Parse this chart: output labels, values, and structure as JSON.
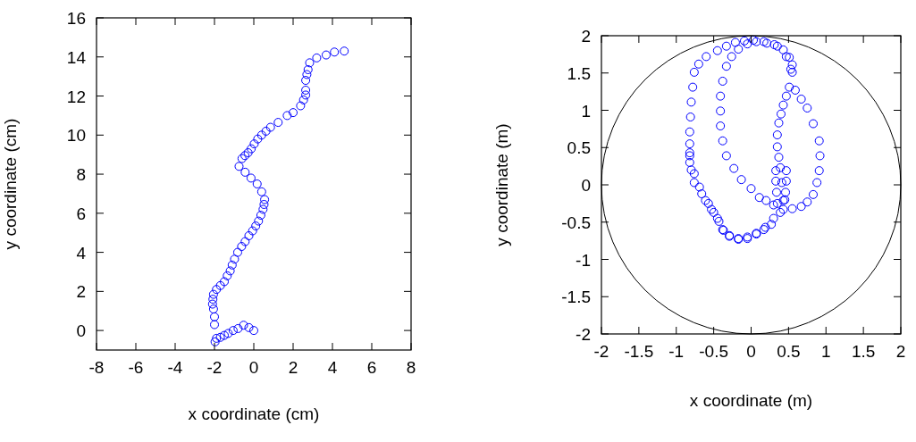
{
  "chart_data": [
    {
      "type": "scatter",
      "xlabel": "x coordinate (cm)",
      "ylabel": "y coordinate (cm)",
      "marker": "circle",
      "color": "#0000ff",
      "xlim": [
        -8,
        8
      ],
      "ylim": [
        -1,
        16
      ],
      "xticks": [
        -8,
        -6,
        -4,
        -2,
        0,
        2,
        4,
        6,
        8
      ],
      "yticks": [
        0,
        2,
        4,
        6,
        8,
        10,
        12,
        14,
        16
      ],
      "x": [
        0,
        -0.25,
        -0.52,
        -0.8,
        -1.05,
        -1.3,
        -1.5,
        -1.7,
        -1.9,
        -1.97,
        -2,
        -2,
        -2.05,
        -2.1,
        -2.08,
        -2.05,
        -1.9,
        -1.7,
        -1.5,
        -1.35,
        -1.2,
        -1.1,
        -0.98,
        -0.82,
        -0.62,
        -0.44,
        -0.25,
        -0.06,
        0.1,
        0.24,
        0.36,
        0.47,
        0.52,
        0.55,
        0.4,
        0.17,
        -0.14,
        -0.44,
        -0.75,
        -0.6,
        -0.45,
        -0.29,
        -0.13,
        0.02,
        0.2,
        0.4,
        0.62,
        0.85,
        1.24,
        1.7,
        2.0,
        2.38,
        2.53,
        2.64,
        2.64,
        2.64,
        2.7,
        2.76,
        2.84,
        3.2,
        3.68,
        4.1,
        4.6
      ],
      "values": [
        0,
        0.15,
        0.27,
        0.1,
        0,
        -0.15,
        -0.25,
        -0.35,
        -0.4,
        -0.58,
        0.3,
        0.7,
        1.1,
        1.35,
        1.6,
        1.85,
        2.1,
        2.3,
        2.5,
        2.8,
        3.05,
        3.35,
        3.65,
        4.0,
        4.3,
        4.55,
        4.85,
        5.1,
        5.35,
        5.6,
        5.9,
        6.2,
        6.45,
        6.7,
        7.1,
        7.5,
        7.8,
        8.1,
        8.4,
        8.8,
        8.95,
        9.1,
        9.3,
        9.55,
        9.8,
        10,
        10.2,
        10.4,
        10.65,
        11,
        11.15,
        11.5,
        11.8,
        12.05,
        12.3,
        12.8,
        13.1,
        13.35,
        13.7,
        13.95,
        14.1,
        14.25,
        14.3
      ]
    },
    {
      "type": "scatter",
      "xlabel": "x coordinate (m)",
      "ylabel": "y coordinate (m)",
      "marker": "circle",
      "color": "#0000ff",
      "xlim": [
        -2,
        2
      ],
      "ylim": [
        -2,
        2
      ],
      "xticks": [
        -2,
        -1.5,
        -1,
        -0.5,
        0,
        0.5,
        1,
        1.5,
        2
      ],
      "yticks": [
        -2,
        -1.5,
        -1,
        -0.5,
        0,
        0.5,
        1,
        1.5,
        2
      ],
      "x": [
        0.33,
        0.33,
        0.34,
        0.35,
        0.3,
        0.19,
        0.07,
        -0.05,
        -0.17,
        -0.29,
        -0.38,
        -0.43,
        -0.5,
        -0.57,
        -0.66,
        -0.76,
        -0.8,
        -0.82,
        -0.82,
        -0.82,
        -0.81,
        -0.8,
        -0.78,
        -0.76,
        -0.7,
        -0.6,
        -0.45,
        -0.33,
        -0.21,
        -0.09,
        0.03,
        0.17,
        0.31,
        0.43,
        0.51,
        0.55,
        0.55,
        0.51,
        0.47,
        0.43,
        0.4,
        0.37,
        0.35,
        0.35,
        0.37,
        0.39,
        0.41,
        0.43,
        0.39,
        0.27,
        0.17,
        0.07,
        -0.05,
        -0.17,
        -0.29,
        -0.37,
        -0.45,
        -0.53,
        -0.61,
        -0.69,
        -0.76,
        -0.82,
        -0.82,
        0.3,
        0.2,
        0.11,
        0.0,
        -0.13,
        -0.23,
        -0.33,
        -0.38,
        -0.41,
        -0.41,
        -0.41,
        -0.38,
        -0.33,
        -0.26,
        -0.17,
        -0.05,
        0.07,
        0.21,
        0.35,
        0.47,
        0.53,
        0.59,
        0.67,
        0.75,
        0.83,
        0.91,
        0.92,
        0.91,
        0.88,
        0.83,
        0.75,
        0.67,
        0.55,
        0.43,
        0.47,
        0.47,
        0.46,
        0.45
      ],
      "values": [
        0.19,
        0.05,
        -0.1,
        -0.25,
        -0.45,
        -0.57,
        -0.66,
        -0.72,
        -0.72,
        -0.69,
        -0.6,
        -0.49,
        -0.37,
        -0.25,
        -0.12,
        0.03,
        0.2,
        0.39,
        0.55,
        0.71,
        0.91,
        1.11,
        1.31,
        1.51,
        1.62,
        1.72,
        1.8,
        1.86,
        1.91,
        1.93,
        1.94,
        1.92,
        1.88,
        1.81,
        1.71,
        1.61,
        1.51,
        1.31,
        1.19,
        1.07,
        0.95,
        0.83,
        0.67,
        0.51,
        0.37,
        0.23,
        0.03,
        -0.21,
        -0.37,
        -0.53,
        -0.6,
        -0.65,
        -0.7,
        -0.73,
        -0.68,
        -0.61,
        -0.45,
        -0.33,
        -0.21,
        -0.03,
        0.15,
        0.3,
        0.43,
        -0.27,
        -0.21,
        -0.17,
        -0.05,
        0.07,
        0.22,
        0.39,
        0.59,
        0.79,
        0.99,
        1.19,
        1.39,
        1.59,
        1.72,
        1.82,
        1.89,
        1.92,
        1.9,
        1.86,
        1.72,
        1.55,
        1.27,
        1.15,
        1.03,
        0.82,
        0.59,
        0.39,
        0.19,
        0.03,
        -0.13,
        -0.23,
        -0.29,
        -0.32,
        -0.33,
        0.19,
        0.05,
        -0.1,
        -0.2
      ]
    }
  ]
}
